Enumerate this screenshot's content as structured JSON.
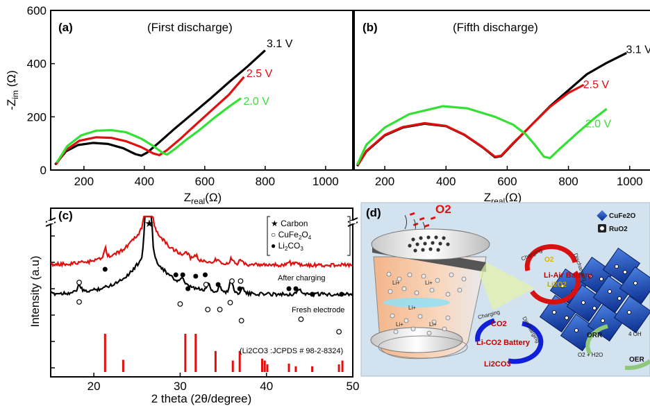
{
  "colors": {
    "black": "#000000",
    "red": "#e01010",
    "green": "#33e033",
    "bar_red": "#e01010",
    "panel_d_bg": "#d3e2ef"
  },
  "chart_data": [
    {
      "type": "line",
      "panel_label": "(a)",
      "title": "(First discharge)",
      "ylabel_main": "-Z",
      "ylabel_sub": "im",
      "ylabel_unit": " (Ω)",
      "xlabel_main": "Z",
      "xlabel_sub": "real",
      "xlabel_unit": "(Ω)",
      "xlim": [
        90,
        1090
      ],
      "ylim": [
        0,
        600
      ],
      "xticks": [
        200,
        400,
        600,
        800,
        1000
      ],
      "yticks": [
        0,
        200,
        400,
        600
      ],
      "series": [
        {
          "name": "3.1 V",
          "color": "black",
          "points": [
            [
              105,
              20
            ],
            [
              140,
              70
            ],
            [
              180,
              94
            ],
            [
              230,
              102
            ],
            [
              280,
              98
            ],
            [
              330,
              82
            ],
            [
              370,
              60
            ],
            [
              390,
              54
            ],
            [
              410,
              66
            ],
            [
              450,
              105
            ],
            [
              500,
              155
            ],
            [
              560,
              212
            ],
            [
              620,
              270
            ],
            [
              680,
              330
            ],
            [
              740,
              388
            ],
            [
              800,
              450
            ]
          ]
        },
        {
          "name": "2.5 V",
          "color": "red",
          "points": [
            [
              108,
              22
            ],
            [
              140,
              75
            ],
            [
              185,
              110
            ],
            [
              240,
              123
            ],
            [
              290,
              121
            ],
            [
              340,
              108
            ],
            [
              390,
              86
            ],
            [
              430,
              62
            ],
            [
              450,
              56
            ],
            [
              475,
              75
            ],
            [
              520,
              118
            ],
            [
              560,
              160
            ],
            [
              620,
              222
            ],
            [
              680,
              283
            ],
            [
              730,
              350
            ]
          ]
        },
        {
          "name": "2.0 V",
          "color": "green",
          "points": [
            [
              110,
              28
            ],
            [
              145,
              90
            ],
            [
              190,
              130
            ],
            [
              240,
              148
            ],
            [
              290,
              150
            ],
            [
              340,
              142
            ],
            [
              390,
              118
            ],
            [
              430,
              90
            ],
            [
              460,
              65
            ],
            [
              475,
              58
            ],
            [
              500,
              78
            ],
            [
              540,
              115
            ],
            [
              580,
              148
            ],
            [
              630,
              195
            ],
            [
              680,
              238
            ],
            [
              720,
              270
            ]
          ]
        }
      ],
      "labels": [
        {
          "text": "3.1 V",
          "color": "black",
          "at": [
            805,
            462
          ]
        },
        {
          "text": "2.5 V",
          "color": "red",
          "at": [
            738,
            350
          ]
        },
        {
          "text": "2.0 V",
          "color": "green",
          "at": [
            728,
            245
          ]
        }
      ]
    },
    {
      "type": "line",
      "panel_label": "(b)",
      "title": "(Fifth discharge)",
      "xlabel_main": "Z",
      "xlabel_sub": "real",
      "xlabel_unit": "(Ω)",
      "xlim": [
        100,
        1080
      ],
      "ylim": [
        0,
        600
      ],
      "xticks": [
        200,
        400,
        600,
        800,
        1000
      ],
      "series": [
        {
          "name": "3.1 V",
          "color": "black",
          "points": [
            [
              110,
              15
            ],
            [
              140,
              70
            ],
            [
              200,
              130
            ],
            [
              260,
              160
            ],
            [
              330,
              174
            ],
            [
              400,
              165
            ],
            [
              460,
              132
            ],
            [
              520,
              85
            ],
            [
              560,
              48
            ],
            [
              580,
              52
            ],
            [
              620,
              100
            ],
            [
              680,
              170
            ],
            [
              740,
              240
            ],
            [
              800,
              300
            ],
            [
              860,
              360
            ],
            [
              920,
              400
            ],
            [
              990,
              440
            ]
          ]
        },
        {
          "name": "2.5 V",
          "color": "red",
          "points": [
            [
              112,
              18
            ],
            [
              140,
              72
            ],
            [
              200,
              132
            ],
            [
              260,
              162
            ],
            [
              330,
              176
            ],
            [
              400,
              166
            ],
            [
              460,
              133
            ],
            [
              520,
              86
            ],
            [
              560,
              50
            ],
            [
              580,
              54
            ],
            [
              620,
              102
            ],
            [
              680,
              170
            ],
            [
              740,
              238
            ],
            [
              800,
              290
            ],
            [
              850,
              320
            ]
          ]
        },
        {
          "name": "2.0 V",
          "color": "green",
          "points": [
            [
              110,
              20
            ],
            [
              140,
              95
            ],
            [
              200,
              160
            ],
            [
              280,
              210
            ],
            [
              390,
              240
            ],
            [
              470,
              232
            ],
            [
              560,
              200
            ],
            [
              620,
              170
            ],
            [
              660,
              135
            ],
            [
              690,
              95
            ],
            [
              720,
              50
            ],
            [
              740,
              45
            ],
            [
              770,
              78
            ],
            [
              830,
              140
            ],
            [
              880,
              190
            ],
            [
              925,
              230
            ]
          ]
        }
      ],
      "labels": [
        {
          "text": "3.1 V",
          "color": "black",
          "at": [
            988,
            440
          ]
        },
        {
          "text": "2.5 V",
          "color": "red",
          "at": [
            848,
            308
          ]
        },
        {
          "text": "2.0 V",
          "color": "green",
          "at": [
            855,
            160
          ]
        }
      ]
    },
    {
      "type": "line",
      "panel_label": "(c)",
      "xlabel": "2 theta (2θ/degree)",
      "ylabel": "Intensity (a.u)",
      "xlim": [
        15,
        50
      ],
      "xticks": [
        20,
        30,
        40,
        50
      ],
      "traces": {
        "after_charging": {
          "label": "After charging",
          "color": "red"
        },
        "fresh": {
          "label": "Fresh electrode",
          "color": "black"
        }
      },
      "legend": [
        {
          "symbol": "★",
          "text": "Carbon"
        },
        {
          "symbol": "○",
          "text": "CuFe",
          "sub": "2",
          "text2": "O",
          "sub2": "4"
        },
        {
          "symbol": "●",
          "text": "Li",
          "sub": "2",
          "text2": "CO",
          "sub2": "3"
        }
      ],
      "reference_label": "(Li2CO3 :JCPDS # 98-2-8324)",
      "reference_bars": [
        {
          "x": 21.3,
          "h": 1.0
        },
        {
          "x": 23.4,
          "h": 0.32
        },
        {
          "x": 30.6,
          "h": 1.0
        },
        {
          "x": 31.8,
          "h": 1.0
        },
        {
          "x": 34.1,
          "h": 0.55
        },
        {
          "x": 36.1,
          "h": 0.3
        },
        {
          "x": 36.9,
          "h": 0.55
        },
        {
          "x": 39.5,
          "h": 0.35
        },
        {
          "x": 39.8,
          "h": 0.3
        },
        {
          "x": 40.1,
          "h": 0.2
        },
        {
          "x": 42.6,
          "h": 0.22
        },
        {
          "x": 43.4,
          "h": 0.15
        },
        {
          "x": 45.3,
          "h": 0.15
        },
        {
          "x": 48.4,
          "h": 0.2
        },
        {
          "x": 48.8,
          "h": 0.3
        }
      ]
    }
  ],
  "panel_d": {
    "label": "(d)",
    "o2": "O2",
    "legend_items": [
      "CuFe2O",
      "RuO2"
    ],
    "li_air": "Li-Air Battery",
    "li_co2": "Li-CO2 Battery",
    "charging": "Charging",
    "discharging": "Discharging",
    "co2": "CO2",
    "li2co3": "Li2CO3",
    "o2_small": "O2",
    "li2o2": "Li2O2",
    "orr": "ORR",
    "oer": "OER",
    "four_oh": "4 OH",
    "o2_h2o": "O2 + H2O",
    "li_plus": "Li+"
  }
}
